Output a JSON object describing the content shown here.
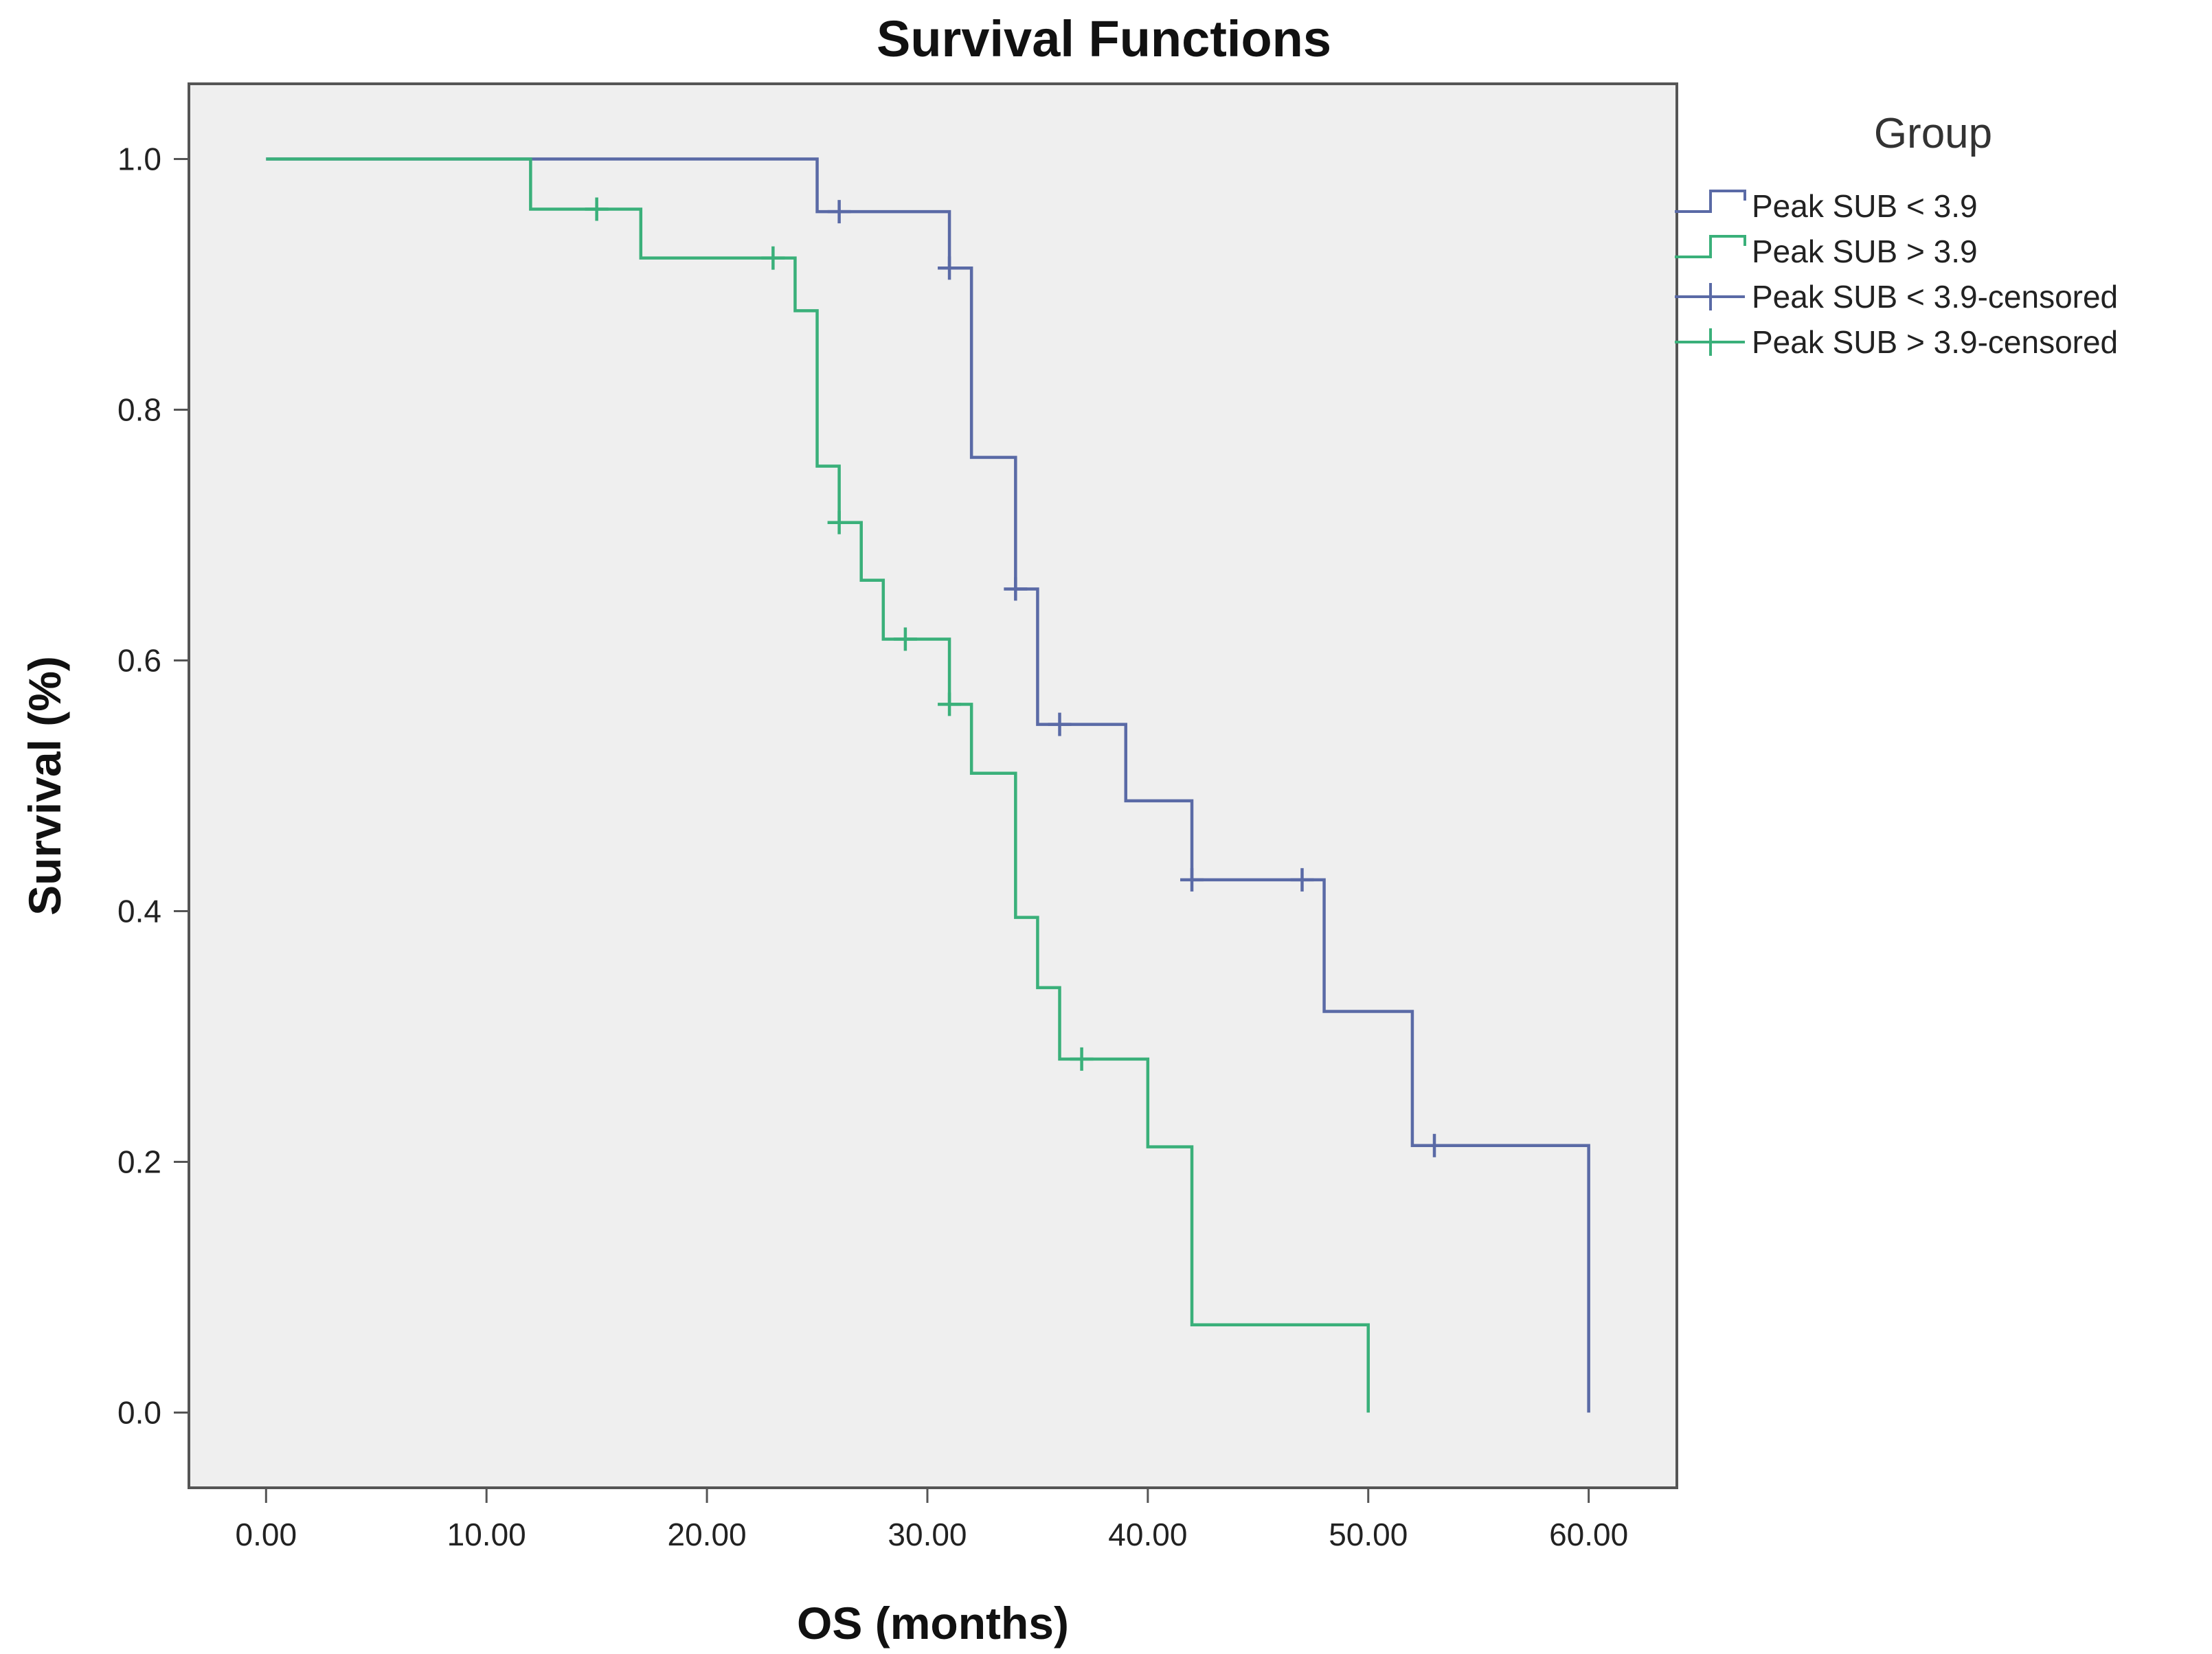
{
  "chart_data": {
    "type": "line",
    "subtype": "kaplan-meier step",
    "title": "Survival Functions",
    "xlabel": "OS (months)",
    "ylabel": "Survival (%)",
    "xlim": [
      -3.5,
      64
    ],
    "ylim": [
      -0.06,
      1.06
    ],
    "x_ticks": [
      0,
      10,
      20,
      30,
      40,
      50,
      60
    ],
    "x_tick_labels": [
      "0.00",
      "10.00",
      "20.00",
      "30.00",
      "40.00",
      "50.00",
      "60.00"
    ],
    "y_ticks": [
      0,
      0.2,
      0.4,
      0.6,
      0.8,
      1.0
    ],
    "y_tick_labels": [
      "0.0",
      "0.2",
      "0.4",
      "0.6",
      "0.8",
      "1.0"
    ],
    "grid": false,
    "legend": {
      "title": "Group",
      "placement": "top-right outside plot",
      "entries": [
        {
          "label": "Peak SUB < 3.9",
          "series": 0,
          "kind": "line"
        },
        {
          "label": "Peak SUB > 3.9",
          "series": 1,
          "kind": "line"
        },
        {
          "label": "Peak SUB < 3.9-censored",
          "series": 0,
          "kind": "censor"
        },
        {
          "label": "Peak SUB > 3.9-censored",
          "series": 1,
          "kind": "censor"
        }
      ]
    },
    "series": [
      {
        "name": "Peak SUB < 3.9",
        "color": "#5a6aa6",
        "steps": [
          [
            0,
            1.0
          ],
          [
            25,
            0.958
          ],
          [
            31,
            0.913
          ],
          [
            32,
            0.762
          ],
          [
            34,
            0.657
          ],
          [
            35,
            0.549
          ],
          [
            39,
            0.488
          ],
          [
            42,
            0.425
          ],
          [
            48,
            0.32
          ],
          [
            52,
            0.213
          ],
          [
            60,
            0.0
          ]
        ],
        "censored": [
          [
            26,
            0.958
          ],
          [
            31,
            0.913
          ],
          [
            34,
            0.657
          ],
          [
            36,
            0.549
          ],
          [
            42,
            0.425
          ],
          [
            47,
            0.425
          ],
          [
            53,
            0.213
          ]
        ]
      },
      {
        "name": "Peak SUB > 3.9",
        "color": "#3ab07a",
        "steps": [
          [
            0,
            1.0
          ],
          [
            12,
            0.96
          ],
          [
            17,
            0.921
          ],
          [
            24,
            0.879
          ],
          [
            25,
            0.755
          ],
          [
            26,
            0.71
          ],
          [
            27,
            0.664
          ],
          [
            28,
            0.617
          ],
          [
            31,
            0.565
          ],
          [
            32,
            0.51
          ],
          [
            34,
            0.395
          ],
          [
            35,
            0.339
          ],
          [
            36,
            0.282
          ],
          [
            40,
            0.212
          ],
          [
            42,
            0.07
          ],
          [
            50,
            0.0
          ]
        ],
        "censored": [
          [
            15,
            0.96
          ],
          [
            23,
            0.921
          ],
          [
            26,
            0.71
          ],
          [
            29,
            0.617
          ],
          [
            31,
            0.565
          ],
          [
            37,
            0.282
          ]
        ]
      }
    ]
  }
}
